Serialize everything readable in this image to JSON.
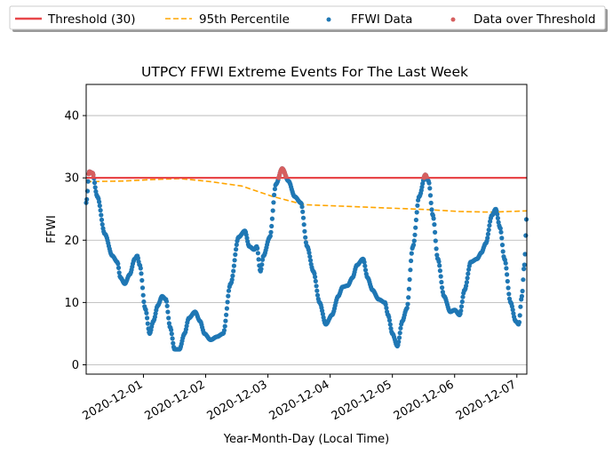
{
  "chart_data": {
    "type": "scatter",
    "title": "UTPCY FFWI Extreme Events For The Last Week",
    "xlabel": "Year-Month-Day (Local Time)",
    "ylabel": "FFWI",
    "ylim": [
      -1.5,
      45
    ],
    "yticks": [
      0,
      10,
      20,
      30,
      40
    ],
    "x_range_days": [
      0.0,
      7.08
    ],
    "x_ticks": [
      {
        "day": 0.92,
        "label": "2020-12-01"
      },
      {
        "day": 1.92,
        "label": "2020-12-02"
      },
      {
        "day": 2.92,
        "label": "2020-12-03"
      },
      {
        "day": 3.92,
        "label": "2020-12-04"
      },
      {
        "day": 4.92,
        "label": "2020-12-05"
      },
      {
        "day": 5.92,
        "label": "2020-12-06"
      },
      {
        "day": 6.92,
        "label": "2020-12-07"
      }
    ],
    "grid": "horizontal",
    "legend_position": "top, above plot",
    "threshold": {
      "name": "Threshold (30)",
      "value": 30,
      "color": "#e8474a"
    },
    "percentile_95": {
      "name": "95th Percentile",
      "color": "#ffa500",
      "points": [
        [
          0.0,
          29.4
        ],
        [
          0.6,
          29.5
        ],
        [
          1.0,
          29.7
        ],
        [
          1.5,
          29.9
        ],
        [
          2.0,
          29.4
        ],
        [
          2.5,
          28.7
        ],
        [
          3.0,
          27.0
        ],
        [
          3.5,
          25.7
        ],
        [
          4.0,
          25.5
        ],
        [
          4.5,
          25.3
        ],
        [
          5.0,
          25.1
        ],
        [
          5.5,
          24.9
        ],
        [
          6.0,
          24.6
        ],
        [
          6.5,
          24.5
        ],
        [
          7.08,
          24.7
        ]
      ]
    },
    "ffwi_series": {
      "name": "FFWI Data",
      "color": "#1f77b4",
      "key_points": [
        [
          0.0,
          26.0
        ],
        [
          0.05,
          31.0
        ],
        [
          0.1,
          30.8
        ],
        [
          0.18,
          27.0
        ],
        [
          0.3,
          21.0
        ],
        [
          0.42,
          17.5
        ],
        [
          0.5,
          16.5
        ],
        [
          0.55,
          14.0
        ],
        [
          0.62,
          13.0
        ],
        [
          0.7,
          14.5
        ],
        [
          0.78,
          17.0
        ],
        [
          0.82,
          17.5
        ],
        [
          0.86,
          16.0
        ],
        [
          0.95,
          9.0
        ],
        [
          1.02,
          5.0
        ],
        [
          1.08,
          7.0
        ],
        [
          1.15,
          9.5
        ],
        [
          1.22,
          11.0
        ],
        [
          1.28,
          10.5
        ],
        [
          1.35,
          6.0
        ],
        [
          1.42,
          2.5
        ],
        [
          1.5,
          2.5
        ],
        [
          1.58,
          5.0
        ],
        [
          1.65,
          7.5
        ],
        [
          1.75,
          8.5
        ],
        [
          1.83,
          7.0
        ],
        [
          1.9,
          5.0
        ],
        [
          2.0,
          4.0
        ],
        [
          2.1,
          4.5
        ],
        [
          2.2,
          5.0
        ],
        [
          2.32,
          13.0
        ],
        [
          2.45,
          20.5
        ],
        [
          2.55,
          21.5
        ],
        [
          2.62,
          19.0
        ],
        [
          2.7,
          18.5
        ],
        [
          2.74,
          19.0
        ],
        [
          2.8,
          15.0
        ],
        [
          2.85,
          17.5
        ],
        [
          2.95,
          20.5
        ],
        [
          3.05,
          29.0
        ],
        [
          3.15,
          31.5
        ],
        [
          3.25,
          29.5
        ],
        [
          3.35,
          27.0
        ],
        [
          3.45,
          26.0
        ],
        [
          3.55,
          19.0
        ],
        [
          3.65,
          15.0
        ],
        [
          3.75,
          10.0
        ],
        [
          3.85,
          6.5
        ],
        [
          3.95,
          8.0
        ],
        [
          4.05,
          11.0
        ],
        [
          4.12,
          12.5
        ],
        [
          4.2,
          12.7
        ],
        [
          4.28,
          14.0
        ],
        [
          4.35,
          16.0
        ],
        [
          4.45,
          17.0
        ],
        [
          4.52,
          14.0
        ],
        [
          4.6,
          12.0
        ],
        [
          4.7,
          10.5
        ],
        [
          4.8,
          10.0
        ],
        [
          4.85,
          8.0
        ],
        [
          4.92,
          5.0
        ],
        [
          5.0,
          3.0
        ],
        [
          5.08,
          7.0
        ],
        [
          5.15,
          9.0
        ],
        [
          5.25,
          19.0
        ],
        [
          5.35,
          27.0
        ],
        [
          5.45,
          30.5
        ],
        [
          5.5,
          29.5
        ],
        [
          5.57,
          24.0
        ],
        [
          5.65,
          17.0
        ],
        [
          5.75,
          11.0
        ],
        [
          5.85,
          8.5
        ],
        [
          5.92,
          8.8
        ],
        [
          6.0,
          8.0
        ],
        [
          6.08,
          12.0
        ],
        [
          6.18,
          16.5
        ],
        [
          6.28,
          17.0
        ],
        [
          6.35,
          18.0
        ],
        [
          6.42,
          19.5
        ],
        [
          6.52,
          24.0
        ],
        [
          6.58,
          25.0
        ],
        [
          6.65,
          22.0
        ],
        [
          6.72,
          17.0
        ],
        [
          6.82,
          10.0
        ],
        [
          6.9,
          7.0
        ],
        [
          6.95,
          6.5
        ],
        [
          7.0,
          11.0
        ],
        [
          7.04,
          16.0
        ],
        [
          7.08,
          24.0
        ]
      ]
    },
    "over_threshold": {
      "name": "Data over Threshold",
      "color": "#d65f5f",
      "threshold": 30
    }
  },
  "legend": {
    "threshold_label": "Threshold (30)",
    "p95_label": "95th Percentile",
    "ffwi_label": "FFWI Data",
    "over_label": "Data over Threshold"
  },
  "colors": {
    "ffwi": "#1f77b4",
    "over": "#d65f5f",
    "threshold": "#e8474a",
    "p95": "#ffa500",
    "grid": "#b0b0b0"
  }
}
